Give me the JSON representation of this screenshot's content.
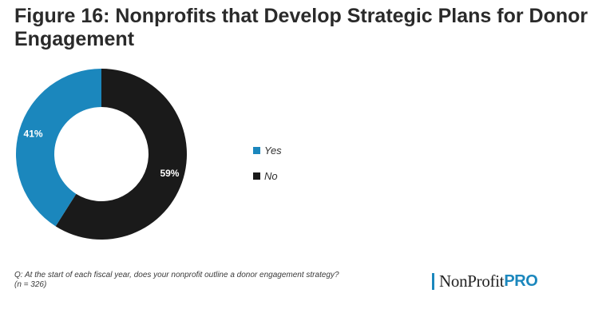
{
  "figure": {
    "title": "Figure 16: Nonprofits that Develop Strategic Plans for Donor Engagement",
    "question": "Q: At the start of each fiscal year, does your nonprofit outline a donor engagement strategy?",
    "sample_size": "(n = 326)"
  },
  "chart_data": {
    "type": "pie",
    "title": "Figure 16: Nonprofits that Develop Strategic Plans for Donor Engagement",
    "donut": true,
    "legend_position": "right",
    "slices": [
      {
        "name": "No",
        "value": 59,
        "label": "59%",
        "color": "#1a1a1a"
      },
      {
        "name": "Yes",
        "value": 41,
        "label": "41%",
        "color": "#1b87bd"
      }
    ]
  },
  "legend": {
    "items": [
      {
        "label": "Yes",
        "color": "#1b87bd"
      },
      {
        "label": "No",
        "color": "#1a1a1a"
      }
    ]
  },
  "brand": {
    "main_text": "NonProfit",
    "accent_text": "PRO",
    "accent_color": "#1b87bd",
    "bar_color": "#1b87bd"
  }
}
